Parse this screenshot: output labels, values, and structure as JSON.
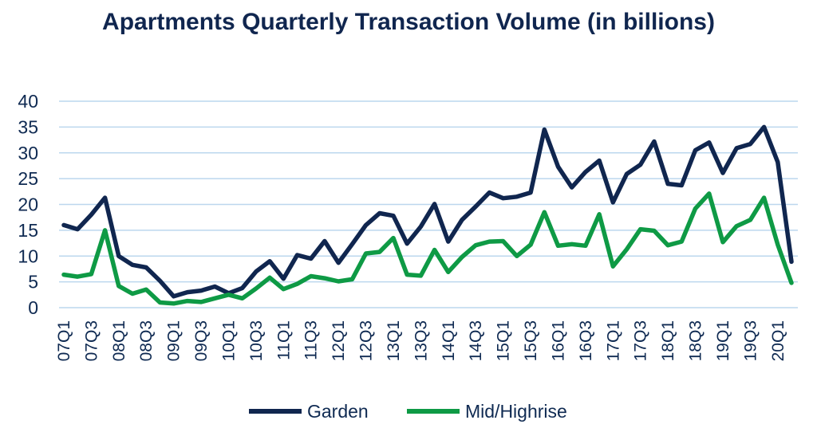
{
  "chart_data": {
    "type": "line",
    "title": "Apartments Quarterly Transaction Volume (in billions)",
    "xlabel": "",
    "ylabel": "",
    "ylim": [
      0,
      40
    ],
    "yticks": [
      0,
      5,
      10,
      15,
      20,
      25,
      30,
      35,
      40
    ],
    "grid": true,
    "legend_position": "bottom",
    "x": [
      "07Q1",
      "07Q2",
      "07Q3",
      "07Q4",
      "08Q1",
      "08Q2",
      "08Q3",
      "08Q4",
      "09Q1",
      "09Q2",
      "09Q3",
      "09Q4",
      "10Q1",
      "10Q2",
      "10Q3",
      "10Q4",
      "11Q1",
      "11Q2",
      "11Q3",
      "11Q4",
      "12Q1",
      "12Q2",
      "12Q3",
      "12Q4",
      "13Q1",
      "13Q2",
      "13Q3",
      "13Q4",
      "14Q1",
      "14Q2",
      "14Q3",
      "14Q4",
      "15Q1",
      "15Q2",
      "15Q3",
      "15Q4",
      "16Q1",
      "16Q2",
      "16Q3",
      "16Q4",
      "17Q1",
      "17Q2",
      "17Q3",
      "17Q4",
      "18Q1",
      "18Q2",
      "18Q3",
      "18Q4",
      "19Q1",
      "19Q2",
      "19Q3",
      "19Q4",
      "20Q1",
      "20Q2"
    ],
    "x_tick_labels": [
      "07Q1",
      "07Q3",
      "08Q1",
      "08Q3",
      "09Q1",
      "09Q3",
      "10Q1",
      "10Q3",
      "11Q1",
      "11Q3",
      "12Q1",
      "12Q3",
      "13Q1",
      "13Q3",
      "14Q1",
      "14Q3",
      "15Q1",
      "15Q3",
      "16Q1",
      "16Q3",
      "17Q1",
      "17Q3",
      "18Q1",
      "18Q3",
      "19Q1",
      "19Q3",
      "20Q1"
    ],
    "series": [
      {
        "name": "Garden",
        "color": "#10264f",
        "values": [
          16,
          15.2,
          18,
          21.3,
          10,
          8.3,
          7.8,
          5.2,
          2.2,
          3,
          3.3,
          4.1,
          2.8,
          3.8,
          7,
          9,
          5.6,
          10.2,
          9.5,
          12.9,
          8.7,
          12.3,
          16,
          18.3,
          17.8,
          12.4,
          15.7,
          20.1,
          12.8,
          17,
          19.6,
          22.3,
          21.2,
          21.5,
          22.3,
          34.5,
          27.3,
          23.3,
          26.3,
          28.5,
          20.4,
          25.9,
          27.7,
          32.2,
          24,
          23.7,
          30.5,
          32,
          26.1,
          30.9,
          31.7,
          35,
          28.2,
          8.9
        ]
      },
      {
        "name": "Mid/Highrise",
        "color": "#0e9a45",
        "values": [
          6.4,
          6,
          6.5,
          15,
          4.2,
          2.7,
          3.5,
          1,
          0.8,
          1.3,
          1.1,
          1.8,
          2.5,
          1.8,
          3.7,
          5.8,
          3.6,
          4.6,
          6.1,
          5.7,
          5.1,
          5.5,
          10.5,
          10.8,
          13.5,
          6.4,
          6.2,
          11.2,
          6.9,
          9.8,
          12.1,
          12.8,
          12.9,
          10,
          12.2,
          18.5,
          12,
          12.3,
          12,
          18.1,
          8,
          11.3,
          15.2,
          14.9,
          12.1,
          12.8,
          19.2,
          22.1,
          12.7,
          15.8,
          17,
          21.3,
          12.2,
          4.8
        ]
      }
    ]
  }
}
